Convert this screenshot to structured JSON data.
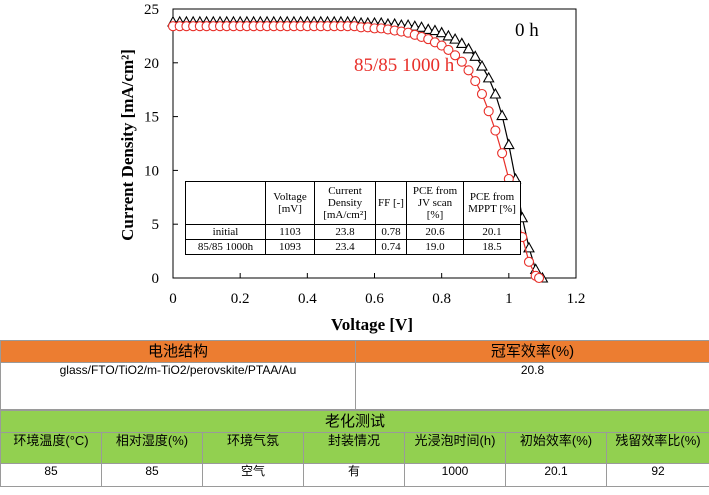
{
  "chart_data": {
    "type": "line",
    "xlabel": "Voltage [V]",
    "ylabel": "Current Density [mA/cm²]",
    "xlim": [
      0,
      1.2
    ],
    "ylim": [
      0,
      25
    ],
    "xticks": [
      "0",
      "0.2",
      "0.4",
      "0.6",
      "0.8",
      "1",
      "1.2"
    ],
    "yticks": [
      "0",
      "5",
      "10",
      "15",
      "20",
      "25"
    ],
    "grid": false,
    "legend": "none",
    "series": [
      {
        "name": "0 h",
        "color": "#000000",
        "marker": "triangle-open",
        "x": [
          0,
          0.02,
          0.04,
          0.06,
          0.08,
          0.1,
          0.12,
          0.14,
          0.16,
          0.18,
          0.2,
          0.22,
          0.24,
          0.26,
          0.28,
          0.3,
          0.32,
          0.34,
          0.36,
          0.38,
          0.4,
          0.42,
          0.44,
          0.46,
          0.48,
          0.5,
          0.52,
          0.54,
          0.56,
          0.58,
          0.6,
          0.62,
          0.64,
          0.66,
          0.68,
          0.7,
          0.72,
          0.74,
          0.76,
          0.78,
          0.8,
          0.82,
          0.84,
          0.86,
          0.88,
          0.9,
          0.92,
          0.94,
          0.96,
          0.98,
          1.0,
          1.02,
          1.04,
          1.06,
          1.08,
          1.1
        ],
        "y": [
          23.8,
          23.8,
          23.8,
          23.8,
          23.8,
          23.8,
          23.8,
          23.8,
          23.8,
          23.8,
          23.8,
          23.8,
          23.8,
          23.8,
          23.8,
          23.8,
          23.8,
          23.8,
          23.8,
          23.8,
          23.8,
          23.8,
          23.8,
          23.8,
          23.8,
          23.8,
          23.8,
          23.8,
          23.7,
          23.7,
          23.7,
          23.7,
          23.6,
          23.6,
          23.5,
          23.5,
          23.4,
          23.3,
          23.1,
          23.0,
          22.8,
          22.5,
          22.2,
          21.8,
          21.3,
          20.6,
          19.7,
          18.6,
          17.1,
          15.1,
          12.4,
          9.2,
          5.6,
          2.8,
          0.8,
          0.0
        ]
      },
      {
        "name": "85/85 1000 h",
        "color": "#e8302a",
        "marker": "circle-open",
        "x": [
          0,
          0.02,
          0.04,
          0.06,
          0.08,
          0.1,
          0.12,
          0.14,
          0.16,
          0.18,
          0.2,
          0.22,
          0.24,
          0.26,
          0.28,
          0.3,
          0.32,
          0.34,
          0.36,
          0.38,
          0.4,
          0.42,
          0.44,
          0.46,
          0.48,
          0.5,
          0.52,
          0.54,
          0.56,
          0.58,
          0.6,
          0.62,
          0.64,
          0.66,
          0.68,
          0.7,
          0.72,
          0.74,
          0.76,
          0.78,
          0.8,
          0.82,
          0.84,
          0.86,
          0.88,
          0.9,
          0.92,
          0.94,
          0.96,
          0.98,
          1.0,
          1.02,
          1.04,
          1.06,
          1.08,
          1.09
        ],
        "y": [
          23.4,
          23.4,
          23.4,
          23.4,
          23.4,
          23.4,
          23.4,
          23.4,
          23.4,
          23.4,
          23.4,
          23.4,
          23.4,
          23.4,
          23.4,
          23.4,
          23.4,
          23.4,
          23.4,
          23.4,
          23.4,
          23.4,
          23.4,
          23.4,
          23.4,
          23.4,
          23.4,
          23.4,
          23.3,
          23.3,
          23.2,
          23.2,
          23.1,
          23.0,
          22.9,
          22.8,
          22.6,
          22.4,
          22.2,
          21.9,
          21.6,
          21.2,
          20.7,
          20.1,
          19.3,
          18.3,
          17.1,
          15.5,
          13.7,
          11.6,
          9.2,
          6.5,
          3.8,
          1.5,
          0.2,
          0.0
        ]
      }
    ],
    "annotations": [
      {
        "text": "0 h",
        "color": "#000000"
      },
      {
        "text": "85/85 1000 h",
        "color": "#e8302a"
      }
    ],
    "inset_table": {
      "headers": [
        "",
        "Voltage [mV]",
        "Current Density [mA/cm²]",
        "FF [-]",
        "PCE from JV scan [%]",
        "PCE from MPPT [%]"
      ],
      "rows": [
        [
          "initial",
          "1103",
          "23.8",
          "0.78",
          "20.6",
          "20.1"
        ],
        [
          "85/85  1000h",
          "1093",
          "23.4",
          "0.74",
          "19.0",
          "18.5"
        ]
      ]
    }
  },
  "info_table_1": {
    "headers": [
      "电池结构",
      "冠军效率(%)"
    ],
    "values": [
      "glass/FTO/TiO2/m-TiO2/perovskite/PTAA/Au",
      "20.8"
    ],
    "header_color": "#ec7d31"
  },
  "info_table_2": {
    "title": "老化测试",
    "headers": [
      "环境温度(°C)",
      "相对湿度(%)",
      "环境气氛",
      "封装情况",
      "光浸泡时间(h)",
      "初始效率(%)",
      "残留效率比(%)"
    ],
    "values": [
      "85",
      "85",
      "空气",
      "有",
      "1000",
      "20.1",
      "92"
    ],
    "header_color": "#92d050"
  }
}
